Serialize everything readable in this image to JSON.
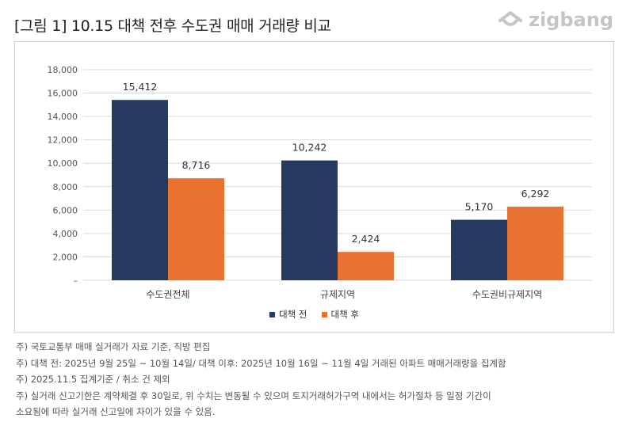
{
  "title": "[그림 1] 10.15 대책 전후 수도권 매매 거래량 비교",
  "logo": {
    "text": "zigbang",
    "icon": "zigbang-logo-icon"
  },
  "colors": {
    "before": "#253a5e",
    "after": "#ea7231",
    "grid": "#d9d9d9",
    "axis_text": "#555555"
  },
  "chart_data": {
    "type": "bar",
    "title": "",
    "categories": [
      "수도권전체",
      "규제지역",
      "수도권비규제지역"
    ],
    "series": [
      {
        "name": "대책 전",
        "values": [
          15412,
          10242,
          5170
        ],
        "labels": [
          "15,412",
          "10,242",
          "5,170"
        ]
      },
      {
        "name": "대책 후",
        "values": [
          8716,
          2424,
          6292
        ],
        "labels": [
          "8,716",
          "2,424",
          "6,292"
        ]
      }
    ],
    "yticks": [
      0,
      2000,
      4000,
      6000,
      8000,
      10000,
      12000,
      14000,
      16000,
      18000
    ],
    "ytick_labels": [
      "–",
      "2,000",
      "4,000",
      "6,000",
      "8,000",
      "10,000",
      "12,000",
      "14,000",
      "16,000",
      "18,000"
    ],
    "ylim": [
      0,
      18000
    ],
    "xlabel": "",
    "ylabel": "",
    "grid": true,
    "legend": "bottom-center"
  },
  "notes": {
    "line1": "주) 국토교통부 매매 실거래가 자료 기준, 직방 편집",
    "line2": "주) 대책 전: 2025년 9월 25일 ~ 10월 14일/ 대책 이후: 2025년 10월 16일 ~ 11월 4일 거래된 아파트 매매거래량을 집계함",
    "line3": "주) 2025.11.5 집계기준 / 취소 건 제외",
    "line4": "주) 실거래 신고기한은 계약체결 후 30일로, 위 수치는 변동될 수 있으며 토지거래허가구역 내에서는 허가절차 등 일정 기간이",
    "line5": "소요됨에 따라 실거래 신고일에 차이가 있을 수 있음."
  }
}
